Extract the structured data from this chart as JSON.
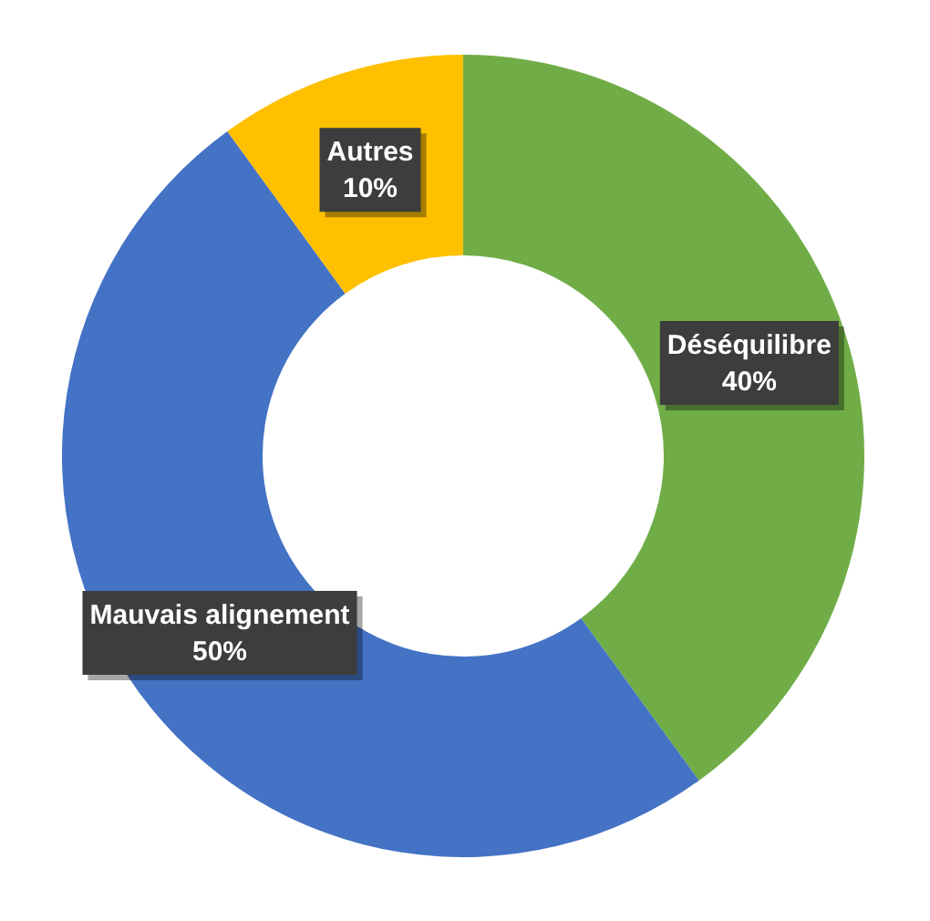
{
  "chart_data": {
    "type": "donut",
    "categories": [
      "Déséquilibre",
      "Mauvais alignement",
      "Autres"
    ],
    "values": [
      40,
      50,
      10
    ],
    "colors": [
      "#70ad47",
      "#4472c4",
      "#ffc000"
    ],
    "value_labels": [
      "40%",
      "50%",
      "10%"
    ],
    "legend": false
  }
}
